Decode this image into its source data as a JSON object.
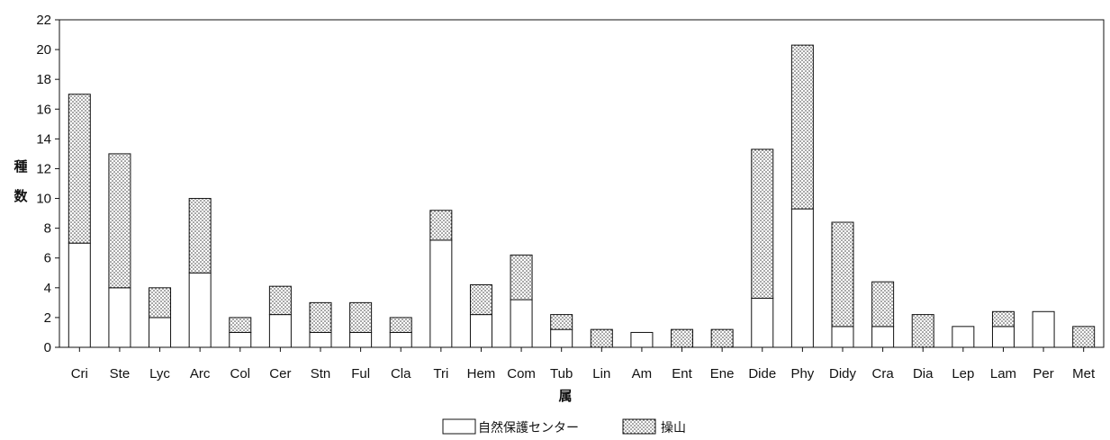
{
  "chart_data": {
    "type": "bar",
    "stacked": true,
    "categories": [
      "Cri",
      "Ste",
      "Lyc",
      "Arc",
      "Col",
      "Cer",
      "Stn",
      "Ful",
      "Cla",
      "Tri",
      "Hem",
      "Com",
      "Tub",
      "Lin",
      "Am",
      "Ent",
      "Ene",
      "Dide",
      "Phy",
      "Didy",
      "Cra",
      "Dia",
      "Lep",
      "Lam",
      "Per",
      "Met"
    ],
    "series": [
      {
        "name": "自然保護センター",
        "pattern": "plain",
        "color": "#ffffff",
        "values": [
          7,
          4,
          2,
          5,
          1,
          2.2,
          1,
          1,
          1,
          7.2,
          2.2,
          3.2,
          1.2,
          0,
          1,
          0,
          0,
          3.3,
          9.3,
          1.4,
          1.4,
          0,
          1.4,
          1.4,
          2.4,
          0
        ]
      },
      {
        "name": "操山",
        "pattern": "dotted",
        "color": "#e8e8e8",
        "values": [
          10,
          9,
          2,
          5,
          1,
          1.9,
          2,
          2,
          1,
          2,
          2,
          3,
          1,
          1.2,
          0,
          1.2,
          1.2,
          10,
          11,
          7,
          3,
          2.2,
          0,
          1,
          0,
          1.4
        ]
      }
    ],
    "title": "",
    "xlabel": "属",
    "ylabel": [
      "種",
      "数"
    ],
    "ylim": [
      0,
      22
    ],
    "yticks": [
      0,
      2,
      4,
      6,
      8,
      10,
      12,
      14,
      16,
      18,
      20,
      22
    ],
    "grid": false,
    "legend_position": "bottom-center"
  }
}
